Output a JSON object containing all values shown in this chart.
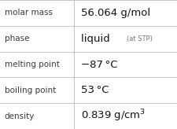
{
  "rows": [
    [
      "molar mass",
      "56.064 g/mol",
      null
    ],
    [
      "phase",
      "liquid",
      "(at STP)"
    ],
    [
      "melting point",
      "−87 °C",
      null
    ],
    [
      "boiling point",
      "53 °C",
      null
    ],
    [
      "density",
      "0.839 g/cm³",
      null
    ]
  ],
  "background_color": "#ffffff",
  "line_color": "#bbbbbb",
  "label_color": "#3a3a3a",
  "value_color": "#111111",
  "extra_color": "#777777",
  "label_fontsize": 7.5,
  "value_fontsize": 9.5,
  "extra_fontsize": 6.0,
  "col_split": 0.415,
  "fig_width": 2.26,
  "fig_height": 1.64,
  "dpi": 100
}
